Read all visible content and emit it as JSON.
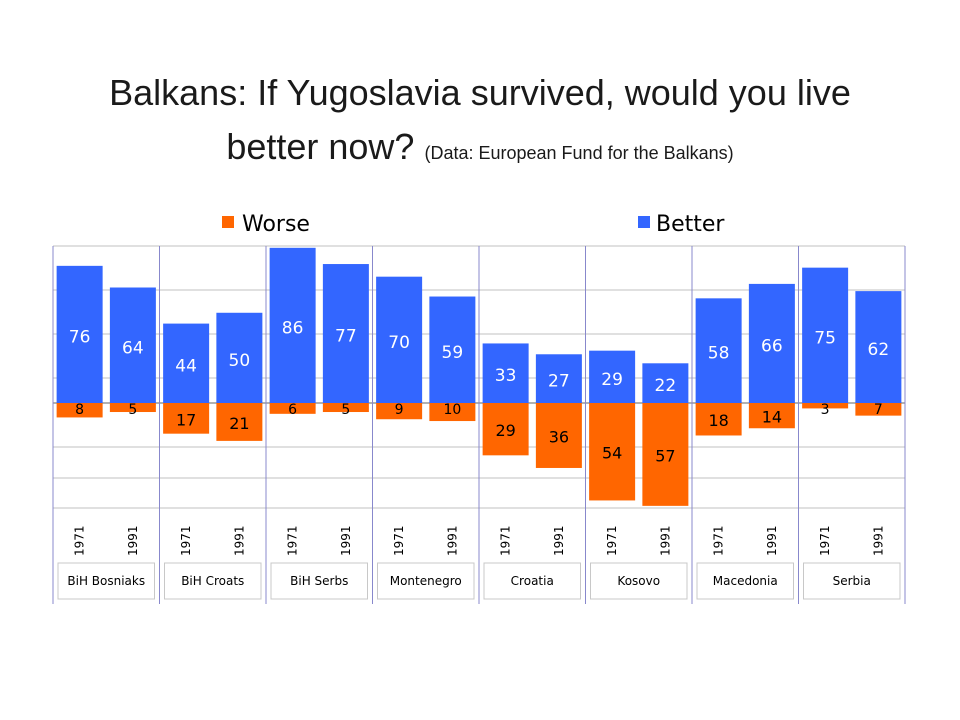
{
  "title": {
    "main_line1": "Balkans: If Yugoslavia survived, would you live",
    "main_line2": "better now?",
    "source": "(Data:  European Fund for the Balkans)"
  },
  "colors": {
    "better": "#3366FF",
    "worse": "#FF6600",
    "axis": "#8888CC",
    "grid": "#C0C0C0"
  },
  "chart_data": {
    "type": "bar",
    "title": "Balkans: If Yugoslavia survived, would you live better now?",
    "legend": {
      "placement": "top",
      "entries": [
        "Worse",
        "Better"
      ]
    },
    "groups": [
      "BiH Bosniaks",
      "BiH Croats",
      "BiH Serbs",
      "Montenegro",
      "Croatia",
      "Kosovo",
      "Macedonia",
      "Serbia"
    ],
    "categories": [
      "1971",
      "1991",
      "1971",
      "1991",
      "1971",
      "1991",
      "1971",
      "1991",
      "1971",
      "1991",
      "1971",
      "1991",
      "1971",
      "1991",
      "1971",
      "1991"
    ],
    "series": [
      {
        "name": "Better",
        "values": [
          76,
          64,
          44,
          50,
          86,
          77,
          70,
          59,
          33,
          27,
          29,
          22,
          58,
          66,
          75,
          62
        ]
      },
      {
        "name": "Worse",
        "values": [
          8,
          5,
          17,
          21,
          6,
          5,
          9,
          10,
          29,
          36,
          54,
          57,
          18,
          14,
          3,
          7
        ]
      }
    ],
    "grid": true
  }
}
